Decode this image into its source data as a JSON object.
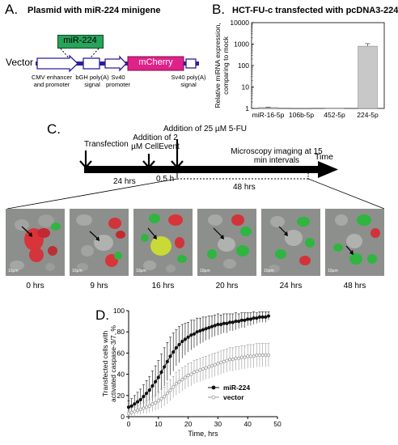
{
  "panelA": {
    "label": "A.",
    "title": "Plasmid with miR-224 minigene",
    "vector_label": "Vector",
    "insert_label": "miR-224",
    "mcherry_label": "mCherry",
    "elements": [
      {
        "text": "CMV enhancer and promoter"
      },
      {
        "text": "bGH poly(A) signal"
      },
      {
        "text": "Sv40 promoter"
      },
      {
        "text": "Sv40 poly(A) signal"
      }
    ],
    "colors": {
      "backbone": "#2a1f9a",
      "insert": "#27a35a",
      "mcherry": "#e0218a"
    }
  },
  "panelB": {
    "label": "B.",
    "title": "HCT-FU-c transfected with pcDNA3-224",
    "chart_data": {
      "type": "bar",
      "title": "HCT-FU-c transfected with pcDNA3-224",
      "categories": [
        "miR-16-5p",
        "106b-5p",
        "452-5p",
        "224-5p"
      ],
      "values": [
        1.1,
        1.0,
        1.05,
        800
      ],
      "errors": [
        0.05,
        0.0,
        0.0,
        250
      ],
      "ylabel": "Relative miRNA expression, comparing to mock",
      "yscale": "log",
      "ylim": [
        1,
        10000
      ],
      "yticks": [
        "1",
        "10",
        "100",
        "1000",
        "10000"
      ],
      "bar_color": "#c8c8c8"
    }
  },
  "panelC": {
    "label": "C.",
    "events": [
      {
        "text": "Transfection"
      },
      {
        "text": "Addition of 2 µM CellEvent"
      },
      {
        "text": "Addition of 25 µM 5-FU"
      }
    ],
    "imaging_text": "Microscopy imaging at 15 min intervals",
    "time_label": "Time",
    "intervals": [
      "24 hrs",
      "0.5 h",
      "48 hrs"
    ],
    "frames": [
      {
        "label": "0 hrs",
        "scale": "10μm"
      },
      {
        "label": "9 hrs",
        "scale": "10μm"
      },
      {
        "label": "16 hrs",
        "scale": "10μm"
      },
      {
        "label": "20 hrs",
        "scale": "10μm"
      },
      {
        "label": "24 hrs",
        "scale": "10μm"
      },
      {
        "label": "48 hrs",
        "scale": "10μm"
      }
    ]
  },
  "panelD": {
    "label": "D.",
    "chart_data": {
      "type": "line",
      "xlabel": "Time, hrs",
      "ylabel": "Transfected cells with activated caspase-3/7, %",
      "xlim": [
        0,
        50
      ],
      "ylim": [
        0,
        100
      ],
      "xticks": [
        0,
        10,
        20,
        30,
        40,
        50
      ],
      "yticks": [
        0,
        20,
        40,
        60,
        80,
        100
      ],
      "legend_position": "bottom-right",
      "series": [
        {
          "name": "miR-224",
          "color": "#111111",
          "x": [
            0,
            1,
            2,
            3,
            4,
            5,
            6,
            7,
            8,
            9,
            10,
            11,
            12,
            13,
            14,
            15,
            16,
            17,
            18,
            19,
            20,
            21,
            22,
            23,
            24,
            25,
            26,
            27,
            28,
            29,
            30,
            31,
            32,
            33,
            34,
            35,
            36,
            37,
            38,
            39,
            40,
            41,
            42,
            43,
            44,
            45,
            46,
            47
          ],
          "y": [
            9,
            10,
            12,
            14,
            16,
            19,
            22,
            25,
            29,
            33,
            37,
            42,
            47,
            52,
            57,
            61,
            65,
            68,
            71,
            73,
            75,
            77,
            78,
            80,
            81,
            82,
            83,
            84,
            85,
            86,
            87,
            87,
            88,
            88,
            89,
            89,
            90,
            90,
            91,
            91,
            92,
            92,
            93,
            93,
            94,
            94,
            94,
            95
          ],
          "err": [
            6,
            7,
            8,
            9,
            10,
            11,
            12,
            13,
            14,
            15,
            16,
            17,
            18,
            18,
            18,
            18,
            17,
            17,
            16,
            15,
            14,
            14,
            13,
            13,
            12,
            12,
            11,
            11,
            10,
            10,
            10,
            9,
            9,
            9,
            8,
            8,
            8,
            7,
            7,
            7,
            6,
            6,
            6,
            5,
            5,
            5,
            5,
            4
          ]
        },
        {
          "name": "vector",
          "color": "#999999",
          "x": [
            0,
            1,
            2,
            3,
            4,
            5,
            6,
            7,
            8,
            9,
            10,
            11,
            12,
            13,
            14,
            15,
            16,
            17,
            18,
            19,
            20,
            21,
            22,
            23,
            24,
            25,
            26,
            27,
            28,
            29,
            30,
            31,
            32,
            33,
            34,
            35,
            36,
            37,
            38,
            39,
            40,
            41,
            42,
            43,
            44,
            45,
            46,
            47
          ],
          "y": [
            3,
            4,
            5,
            6,
            7,
            8,
            9,
            10,
            12,
            13,
            15,
            17,
            19,
            22,
            25,
            28,
            31,
            33,
            35,
            37,
            39,
            40,
            42,
            43,
            44,
            45,
            46,
            47,
            48,
            49,
            50,
            51,
            52,
            53,
            54,
            54,
            55,
            55,
            56,
            56,
            57,
            57,
            57,
            58,
            58,
            58,
            58,
            58
          ],
          "err": [
            3,
            3,
            4,
            4,
            5,
            5,
            6,
            6,
            7,
            7,
            8,
            9,
            9,
            10,
            10,
            10,
            11,
            11,
            11,
            11,
            11,
            11,
            11,
            11,
            11,
            11,
            11,
            11,
            11,
            11,
            11,
            11,
            11,
            11,
            11,
            11,
            11,
            11,
            11,
            11,
            11,
            11,
            11,
            11,
            11,
            11,
            11,
            11
          ]
        }
      ]
    }
  }
}
